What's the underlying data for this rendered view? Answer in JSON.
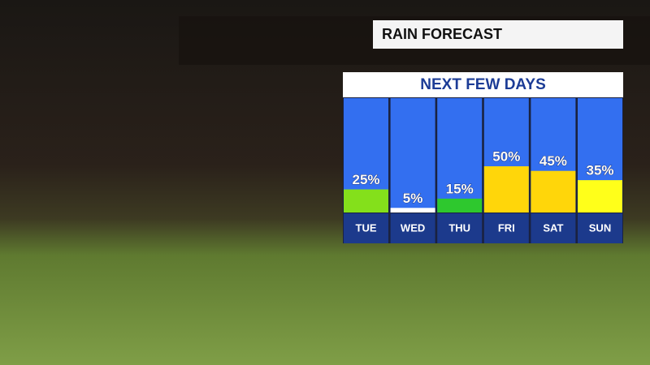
{
  "chart_data": {
    "type": "bar",
    "title": "RAIN FORECAST",
    "subtitle": "NEXT FEW DAYS",
    "categories": [
      "TUE",
      "WED",
      "THU",
      "FRI",
      "SAT",
      "SUN"
    ],
    "values": [
      25,
      5,
      15,
      50,
      45,
      35
    ],
    "value_labels": [
      "25%",
      "5%",
      "15%",
      "50%",
      "45%",
      "35%"
    ],
    "colors": [
      "#84e01b",
      "#ffffff",
      "#2ec82e",
      "#ffd60a",
      "#ffd60a",
      "#ffff1a"
    ]
  }
}
